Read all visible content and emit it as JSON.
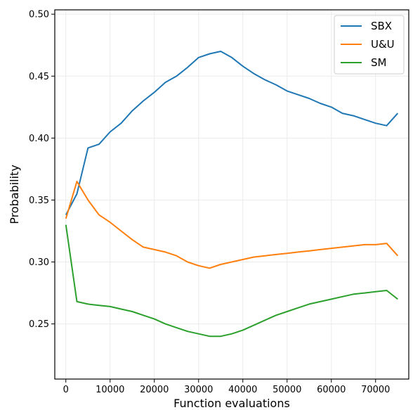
{
  "chart_data": {
    "type": "line",
    "xlabel": "Function evaluations",
    "ylabel": "Probability",
    "xlim": [
      -2500,
      77500
    ],
    "ylim": [
      0.2055,
      0.5035
    ],
    "xticks": [
      0,
      10000,
      20000,
      30000,
      40000,
      50000,
      60000,
      70000
    ],
    "yticks": [
      0.25,
      0.3,
      0.35,
      0.4,
      0.45,
      0.5
    ],
    "xtick_labels": [
      "0",
      "10000",
      "20000",
      "30000",
      "40000",
      "50000",
      "60000",
      "70000"
    ],
    "ytick_labels": [
      "0.25",
      "0.30",
      "0.35",
      "0.40",
      "0.45",
      "0.50"
    ],
    "grid": true,
    "legend_position": "top-right",
    "series": [
      {
        "name": "SBX",
        "color": "#1f77b4",
        "x": [
          0,
          2500,
          5000,
          7500,
          10000,
          12500,
          15000,
          17500,
          20000,
          22500,
          25000,
          27500,
          30000,
          32500,
          35000,
          37500,
          40000,
          42500,
          45000,
          47500,
          50000,
          52500,
          55000,
          57500,
          60000,
          62500,
          65000,
          67500,
          70000,
          72500,
          75000
        ],
        "values": [
          0.338,
          0.355,
          0.392,
          0.395,
          0.405,
          0.412,
          0.422,
          0.43,
          0.437,
          0.445,
          0.45,
          0.457,
          0.465,
          0.468,
          0.47,
          0.465,
          0.458,
          0.452,
          0.447,
          0.443,
          0.438,
          0.435,
          0.432,
          0.428,
          0.425,
          0.42,
          0.418,
          0.415,
          0.412,
          0.41,
          0.42
        ]
      },
      {
        "name": "U&U",
        "color": "#ff7f0e",
        "x": [
          0,
          2500,
          5000,
          7500,
          10000,
          12500,
          15000,
          17500,
          20000,
          22500,
          25000,
          27500,
          30000,
          32500,
          35000,
          37500,
          40000,
          42500,
          45000,
          47500,
          50000,
          52500,
          55000,
          57500,
          60000,
          62500,
          65000,
          67500,
          70000,
          72500,
          75000
        ],
        "values": [
          0.335,
          0.365,
          0.35,
          0.338,
          0.332,
          0.325,
          0.318,
          0.312,
          0.31,
          0.308,
          0.305,
          0.3,
          0.297,
          0.295,
          0.298,
          0.3,
          0.302,
          0.304,
          0.305,
          0.306,
          0.307,
          0.308,
          0.309,
          0.31,
          0.311,
          0.312,
          0.313,
          0.314,
          0.314,
          0.315,
          0.305
        ]
      },
      {
        "name": "SM",
        "color": "#2ca02c",
        "x": [
          0,
          2500,
          5000,
          7500,
          10000,
          12500,
          15000,
          17500,
          20000,
          22500,
          25000,
          27500,
          30000,
          32500,
          35000,
          37500,
          40000,
          42500,
          45000,
          47500,
          50000,
          52500,
          55000,
          57500,
          60000,
          62500,
          65000,
          67500,
          70000,
          72500,
          75000
        ],
        "values": [
          0.33,
          0.268,
          0.266,
          0.265,
          0.264,
          0.262,
          0.26,
          0.257,
          0.254,
          0.25,
          0.247,
          0.244,
          0.242,
          0.24,
          0.24,
          0.242,
          0.245,
          0.249,
          0.253,
          0.257,
          0.26,
          0.263,
          0.266,
          0.268,
          0.27,
          0.272,
          0.274,
          0.275,
          0.276,
          0.277,
          0.27
        ]
      }
    ]
  }
}
